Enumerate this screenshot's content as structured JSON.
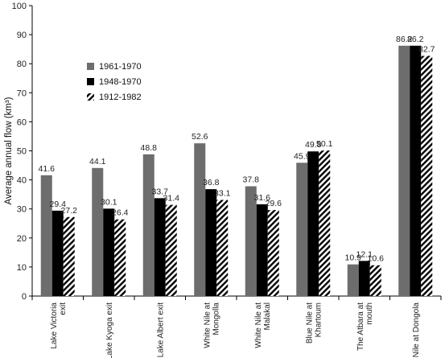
{
  "chart_data": {
    "type": "bar",
    "title": "",
    "xlabel": "",
    "ylabel": "Average annual flow (km³)",
    "ylim": [
      0,
      100
    ],
    "ytick_step": 10,
    "grid": false,
    "legend_position": "top-left",
    "categories": [
      [
        "Lake Victoria",
        "exit"
      ],
      [
        "Lake Kyoga exit"
      ],
      [
        "Lake Albert exit"
      ],
      [
        "White Nile at",
        "Mongolla"
      ],
      [
        "White Nile at",
        "Malakal"
      ],
      [
        "Blue Nile at",
        "Khartoum"
      ],
      [
        "The Atbara at",
        "mouth"
      ],
      [
        "Nile at Dongola"
      ]
    ],
    "series": [
      {
        "name": "1961-1970",
        "pattern": "solid",
        "color": "#6d6d6d",
        "values": [
          41.6,
          44.1,
          48.8,
          52.6,
          37.8,
          45.9,
          10.9,
          86.2
        ]
      },
      {
        "name": "1948-1970",
        "pattern": "solid",
        "color": "#000000",
        "values": [
          29.4,
          30.1,
          33.7,
          36.8,
          31.6,
          49.8,
          12.1,
          86.2
        ]
      },
      {
        "name": "1912-1982",
        "pattern": "hatched",
        "color": "#000000",
        "values": [
          27.2,
          26.4,
          31.4,
          33.1,
          29.6,
          50.1,
          10.6,
          82.7
        ]
      }
    ]
  }
}
